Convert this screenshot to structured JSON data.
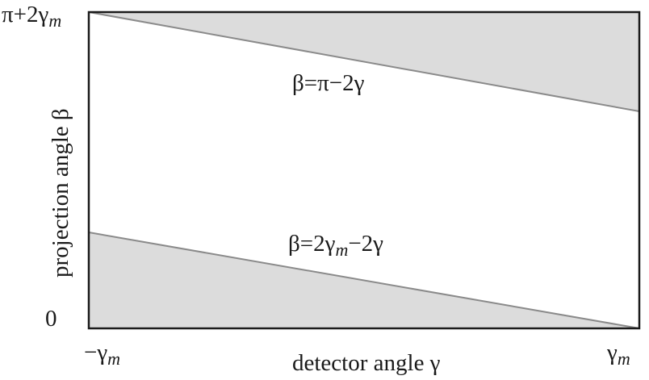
{
  "diagram": {
    "y_axis_label": "projection angle β",
    "x_axis_label": "detector angle γ",
    "y_top_tick": {
      "main": "π+2γ",
      "sub": "m"
    },
    "y_bottom_tick": "0",
    "x_left_tick": {
      "main": "−γ",
      "sub": "m"
    },
    "x_right_tick": {
      "main": "γ",
      "sub": "m"
    },
    "upper_line_label": "β=π−2γ",
    "lower_line_label": {
      "pre": "β=2γ",
      "sub": "m",
      "post": "−2γ"
    },
    "colors": {
      "shaded_region": "#dcdcdc",
      "boundary_line": "#8a8a8a",
      "frame": "#1a1a1a"
    }
  }
}
